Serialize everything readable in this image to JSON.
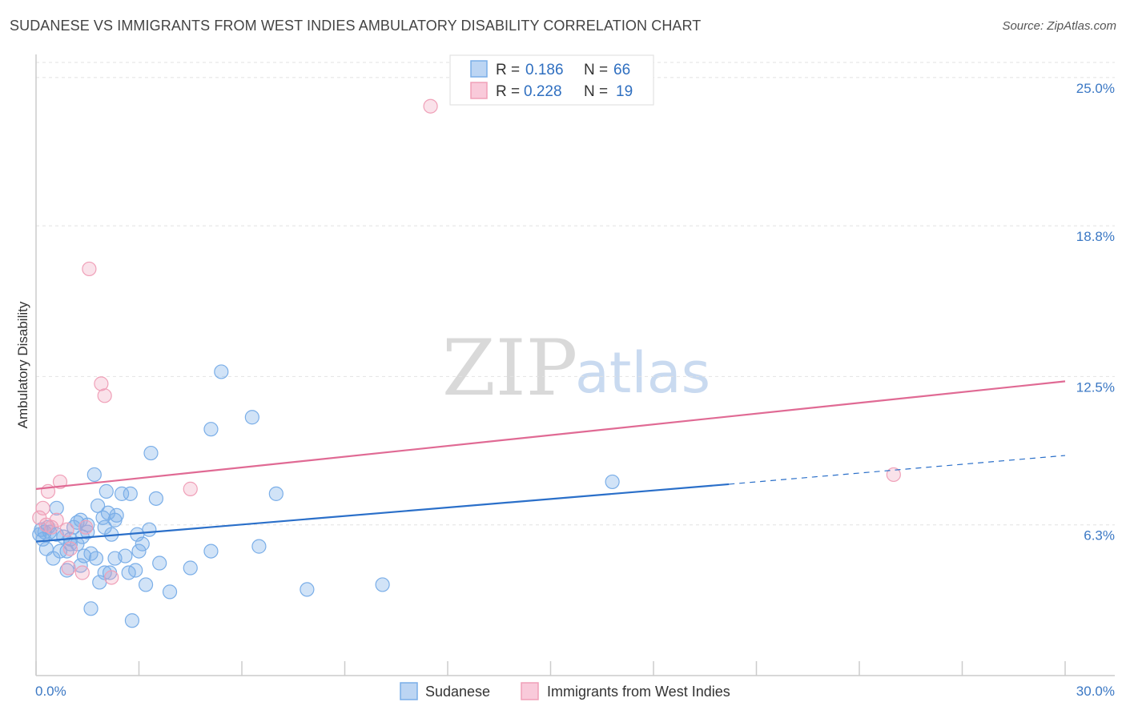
{
  "title": "SUDANESE VS IMMIGRANTS FROM WEST INDIES AMBULATORY DISABILITY CORRELATION CHART",
  "source": "Source: ZipAtlas.com",
  "watermark": {
    "zip": "ZIP",
    "atlas": "atlas"
  },
  "chart_data": {
    "type": "scatter",
    "title": "SUDANESE VS IMMIGRANTS FROM WEST INDIES AMBULATORY DISABILITY CORRELATION CHART",
    "xlabel": "",
    "ylabel": "Ambulatory Disability",
    "xlim": [
      0,
      30
    ],
    "ylim": [
      0,
      26.3
    ],
    "x_tick_labels": {
      "min": "0.0%",
      "max": "30.0%"
    },
    "y_ticks": [
      {
        "value": 6.3,
        "label": "6.3%"
      },
      {
        "value": 12.5,
        "label": "12.5%"
      },
      {
        "value": 18.8,
        "label": "18.8%"
      },
      {
        "value": 25.0,
        "label": "25.0%"
      }
    ],
    "legend": [
      {
        "name": "Sudanese",
        "r_label": "R =",
        "r": "0.186",
        "n_label": "N =",
        "n": "66",
        "color": "#7aaee8"
      },
      {
        "name": "Immigrants from West Indies",
        "r_label": "R =",
        "r": "0.228",
        "n_label": "N =",
        "n": "19",
        "color": "#f0a0b8"
      }
    ],
    "series": [
      {
        "name": "Sudanese",
        "color": "#7aaee8",
        "line_color": "#2a6fc9",
        "trend": {
          "x0": 0,
          "y0": 5.6,
          "x1": 20.2,
          "y1": 8.0,
          "dash_to_x": 30,
          "dash_to_y": 9.2
        },
        "points": [
          [
            0.1,
            5.9
          ],
          [
            0.15,
            6.1
          ],
          [
            0.2,
            5.7
          ],
          [
            0.25,
            6.0
          ],
          [
            0.3,
            5.3
          ],
          [
            0.35,
            6.2
          ],
          [
            0.4,
            6.0
          ],
          [
            0.5,
            4.9
          ],
          [
            0.6,
            5.9
          ],
          [
            0.6,
            7.0
          ],
          [
            0.7,
            5.2
          ],
          [
            0.8,
            5.8
          ],
          [
            0.9,
            5.2
          ],
          [
            0.9,
            4.4
          ],
          [
            1.0,
            5.5
          ],
          [
            1.0,
            5.7
          ],
          [
            1.1,
            6.2
          ],
          [
            1.2,
            5.5
          ],
          [
            1.2,
            6.4
          ],
          [
            1.3,
            4.6
          ],
          [
            1.3,
            6.5
          ],
          [
            1.35,
            5.8
          ],
          [
            1.4,
            5.0
          ],
          [
            1.5,
            6.0
          ],
          [
            1.5,
            6.3
          ],
          [
            1.6,
            5.1
          ],
          [
            1.6,
            2.8
          ],
          [
            1.7,
            8.4
          ],
          [
            1.75,
            4.9
          ],
          [
            1.8,
            7.1
          ],
          [
            1.85,
            3.9
          ],
          [
            1.95,
            6.6
          ],
          [
            2.0,
            6.2
          ],
          [
            2.0,
            4.3
          ],
          [
            2.05,
            7.7
          ],
          [
            2.1,
            6.8
          ],
          [
            2.15,
            4.3
          ],
          [
            2.2,
            5.9
          ],
          [
            2.3,
            6.5
          ],
          [
            2.3,
            4.9
          ],
          [
            2.35,
            6.7
          ],
          [
            2.5,
            7.6
          ],
          [
            2.6,
            5.0
          ],
          [
            2.7,
            4.3
          ],
          [
            2.75,
            7.6
          ],
          [
            2.8,
            2.3
          ],
          [
            2.9,
            4.4
          ],
          [
            2.95,
            5.9
          ],
          [
            3.0,
            5.2
          ],
          [
            3.1,
            5.5
          ],
          [
            3.2,
            3.8
          ],
          [
            3.3,
            6.1
          ],
          [
            3.35,
            9.3
          ],
          [
            3.5,
            7.4
          ],
          [
            3.6,
            4.7
          ],
          [
            3.9,
            3.5
          ],
          [
            4.5,
            4.5
          ],
          [
            5.1,
            5.2
          ],
          [
            5.1,
            10.3
          ],
          [
            5.4,
            12.7
          ],
          [
            6.3,
            10.8
          ],
          [
            6.5,
            5.4
          ],
          [
            7.0,
            7.6
          ],
          [
            7.9,
            3.6
          ],
          [
            10.1,
            3.8
          ],
          [
            16.8,
            8.1
          ]
        ]
      },
      {
        "name": "Immigrants from West Indies",
        "color": "#f0a0b8",
        "line_color": "#e06a94",
        "trend": {
          "x0": 0,
          "y0": 7.8,
          "x1": 30,
          "y1": 12.3
        },
        "points": [
          [
            0.1,
            6.6
          ],
          [
            0.2,
            7.0
          ],
          [
            0.3,
            6.3
          ],
          [
            0.35,
            7.7
          ],
          [
            0.45,
            6.2
          ],
          [
            0.6,
            6.5
          ],
          [
            0.7,
            8.1
          ],
          [
            0.9,
            6.1
          ],
          [
            0.95,
            4.5
          ],
          [
            1.0,
            5.3
          ],
          [
            1.35,
            4.3
          ],
          [
            1.45,
            6.2
          ],
          [
            1.55,
            17.0
          ],
          [
            1.9,
            12.2
          ],
          [
            2.0,
            11.7
          ],
          [
            2.2,
            4.1
          ],
          [
            4.5,
            7.8
          ],
          [
            11.5,
            23.8
          ],
          [
            25.0,
            8.4
          ]
        ]
      }
    ]
  }
}
